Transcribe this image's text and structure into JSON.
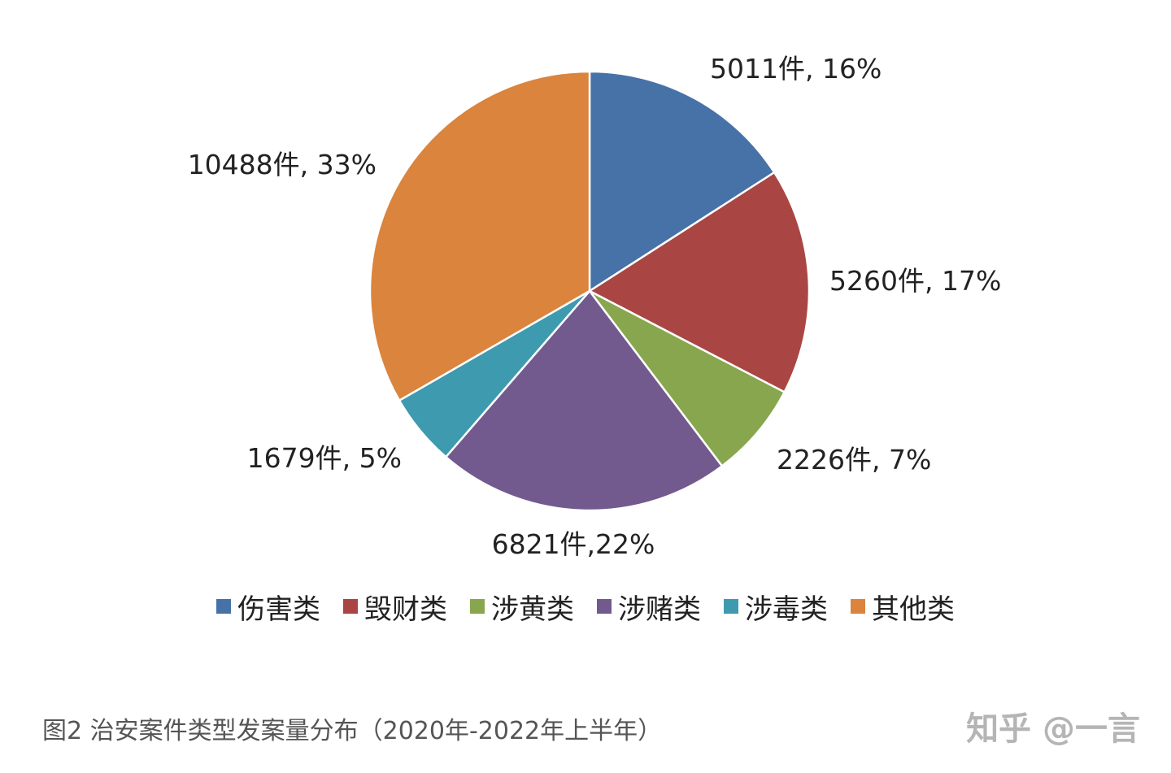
{
  "chart_data": {
    "type": "pie",
    "slices": [
      {
        "name": "伤害类",
        "value": 5011,
        "label": "5011件, 16%",
        "color": "#4672A8"
      },
      {
        "name": "毁财类",
        "value": 5260,
        "label": "5260件, 17%",
        "color": "#A94643"
      },
      {
        "name": "涉黄类",
        "value": 2226,
        "label": "2226件, 7%",
        "color": "#88A64D"
      },
      {
        "name": "涉赌类",
        "value": 6821,
        "label": "6821件,22%",
        "color": "#725A8F"
      },
      {
        "name": "涉毒类",
        "value": 1679,
        "label": "1679件, 5%",
        "color": "#3E9AAF"
      },
      {
        "name": "其他类",
        "value": 10488,
        "label": "10488件, 33%",
        "color": "#DA843E"
      }
    ],
    "legend_position": "bottom"
  },
  "caption": "图2 治安案件类型发案量分布（2020年-2022年上半年）",
  "watermark": "知乎 @一言"
}
